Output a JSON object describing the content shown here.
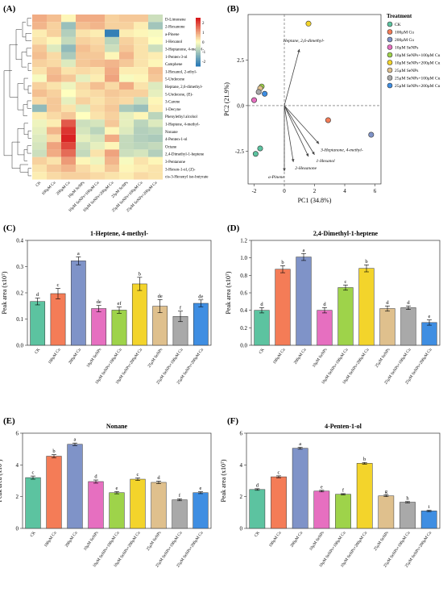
{
  "figure": {
    "panels": {
      "A": {
        "label": "(A)",
        "rows": [
          "D-Limonene",
          "2-Hexanone",
          "a-Pinene",
          "1-Hexanol",
          "3-Heptanone, 4-methyl-",
          "1-Penten-3-ol",
          "Camphene",
          "1-Hexanol, 2-ethyl-",
          "5-Undecene",
          "Heptane, 2,6-dimethyl-",
          "5-Undecene, (E)-",
          "3-Carene",
          "1-Decyne",
          "Phenylethyl alcohol",
          "1-Heptene, 4-methyl-",
          "Nonane",
          "4-Penten-1-ol",
          "Octane",
          "2,4-Dimethyl-1-heptene",
          "3-Pentanone",
          "3-Hexen-1-ol, (Z)-",
          "cis-3-Hexenyl iso-butyrate"
        ],
        "columns": [
          "CK",
          "100μM Cu",
          "200μM Cu",
          "10μM SeNPs",
          "10μM SeNPs+100μM Cu",
          "10μM SeNPs+200μM Cu",
          "25μM SeNPs",
          "25μM SeNPs+100μM Cu",
          "25μM SeNPs+200μM Cu"
        ],
        "colorbar_ticks": [
          "2",
          "1",
          "0",
          "-1",
          "-2"
        ],
        "colors": {
          "high": "#d7191c",
          "mid": "#ffffbf",
          "low": "#2c7bb6"
        }
      },
      "B": {
        "label": "(B)",
        "legend_title": "Treatment",
        "legend": [
          "CK",
          "100μM Cu",
          "200μM Cu",
          "10μM SeNPs",
          "10μM SeNPs+100μM Cu",
          "10μM SeNPs+200μM Cu",
          "25μM SeNPs",
          "25μM SeNPs+100μM Cu",
          "25μM SeNPs+200μM Cu"
        ]
      },
      "C": {
        "label": "(C)"
      },
      "D": {
        "label": "(D)"
      },
      "E": {
        "label": "(E)"
      },
      "F": {
        "label": "(F)"
      }
    }
  },
  "chart_data": [
    {
      "type": "heatmap",
      "panel": "A",
      "rows": [
        "D-Limonene",
        "2-Hexanone",
        "a-Pinene",
        "1-Hexanol",
        "3-Heptanone, 4-methyl-",
        "1-Penten-3-ol",
        "Camphene",
        "1-Hexanol, 2-ethyl-",
        "5-Undecene",
        "Heptane, 2,6-dimethyl-",
        "5-Undecene, (E)-",
        "3-Carene",
        "1-Decyne",
        "Phenylethyl alcohol",
        "1-Heptene, 4-methyl-",
        "Nonane",
        "4-Penten-1-ol",
        "Octane",
        "2,4-Dimethyl-1-heptene",
        "3-Pentanone",
        "3-Hexen-1-ol, (Z)-",
        "cis-3-Hexenyl iso-butyrate"
      ],
      "columns": [
        "CK",
        "100μM Cu",
        "200μM Cu",
        "10μM SeNPs",
        "10μM SeNPs+100μM Cu",
        "10μM SeNPs+200μM Cu",
        "25μM SeNPs",
        "25μM SeNPs+100μM Cu",
        "25μM SeNPs+200μM Cu"
      ],
      "values": [
        [
          0.9,
          0.7,
          0.1,
          0.9,
          0.9,
          0.5,
          0.6,
          0.6,
          -0.6
        ],
        [
          0.8,
          0.5,
          -1.2,
          0.7,
          0.8,
          0.5,
          0.5,
          0.2,
          -1.1
        ],
        [
          0.2,
          0.5,
          -0.9,
          0.3,
          0.2,
          -2.4,
          0.2,
          0.1,
          -0.1
        ],
        [
          0.3,
          0.1,
          -0.7,
          0.5,
          0.4,
          -0.8,
          0.5,
          0.3,
          0.0
        ],
        [
          0.6,
          -0.4,
          -1.3,
          0.7,
          0.5,
          -0.6,
          0.6,
          0.3,
          -0.6
        ],
        [
          0.7,
          0.4,
          -1.0,
          0.6,
          0.6,
          0.1,
          0.8,
          0.3,
          0.2
        ],
        [
          0.5,
          0.4,
          -0.4,
          0.6,
          0.7,
          0.8,
          0.6,
          0.3,
          0.1
        ],
        [
          0.3,
          0.7,
          0.3,
          0.4,
          0.3,
          0.9,
          0.2,
          0.2,
          0.7
        ],
        [
          -0.1,
          0.8,
          0.6,
          -0.3,
          0.2,
          1.0,
          -0.1,
          0.1,
          0.6
        ],
        [
          0.5,
          0.3,
          -0.2,
          0.4,
          0.7,
          0.4,
          0.9,
          0.3,
          -0.4
        ],
        [
          0.7,
          0.5,
          0.0,
          0.3,
          0.4,
          0.6,
          0.5,
          0.5,
          -0.3
        ],
        [
          0.4,
          0.6,
          -0.3,
          0.5,
          0.3,
          0.5,
          0.4,
          -0.6,
          0.1
        ],
        [
          -1.3,
          0.6,
          0.3,
          -0.4,
          0.4,
          0.6,
          -1.0,
          -1.2,
          0.2
        ],
        [
          0.2,
          0.4,
          0.6,
          0.0,
          0.3,
          0.5,
          -0.3,
          0.1,
          -0.8
        ],
        [
          -0.2,
          0.2,
          1.8,
          -0.6,
          -0.5,
          0.6,
          -0.3,
          -0.8,
          -0.4
        ],
        [
          -0.3,
          0.8,
          2.2,
          -0.5,
          -0.8,
          0.1,
          -0.4,
          -0.9,
          -0.8
        ],
        [
          -0.4,
          0.4,
          2.4,
          -0.3,
          -0.5,
          0.9,
          -0.7,
          -0.9,
          -1.0
        ],
        [
          -0.5,
          1.0,
          2.0,
          -0.6,
          -0.3,
          0.1,
          -0.7,
          -0.8,
          -0.7
        ],
        [
          -0.6,
          0.9,
          1.6,
          -0.7,
          0.3,
          1.0,
          -0.6,
          -0.5,
          -0.9
        ],
        [
          0.5,
          0.3,
          1.1,
          0.1,
          -0.2,
          0.8,
          -0.1,
          0.3,
          0.1
        ],
        [
          0.3,
          0.6,
          0.8,
          0.4,
          0.2,
          0.6,
          0.1,
          0.2,
          0.3
        ],
        [
          0.2,
          0.4,
          0.5,
          0.5,
          0.4,
          0.3,
          0.2,
          0.4,
          0.3
        ]
      ],
      "colorbar_range": [
        -2.5,
        2.5
      ]
    },
    {
      "type": "scatter",
      "panel": "B",
      "xlabel": "PC1 (34.8%)",
      "ylabel": "PC2 (21.9%)",
      "xlim": [
        -2.4,
        6.4
      ],
      "ylim": [
        -4.3,
        5.0
      ],
      "xticks": [
        "-2",
        "0",
        "2",
        "4",
        "6"
      ],
      "yticks": [
        "2.5",
        "0.0",
        "-2.5"
      ],
      "points": [
        {
          "group": "CK",
          "x": -1.6,
          "y": -2.35,
          "color": "#5cc3a0"
        },
        {
          "group": "CK",
          "x": -1.9,
          "y": -2.65,
          "color": "#5cc3a0"
        },
        {
          "group": "100μM Cu",
          "x": 2.9,
          "y": -0.8,
          "color": "#f47c57"
        },
        {
          "group": "200μM Cu",
          "x": 5.75,
          "y": -1.6,
          "color": "#7f93c8"
        },
        {
          "group": "10μM SeNPs",
          "x": -2.0,
          "y": 0.3,
          "color": "#e66fc0"
        },
        {
          "group": "10μM SeNPs+100μM Cu",
          "x": -1.5,
          "y": 1.05,
          "color": "#9ed34a"
        },
        {
          "group": "10μM SeNPs+200μM Cu",
          "x": 1.6,
          "y": 4.5,
          "color": "#f3d42b"
        },
        {
          "group": "25μM SeNPs",
          "x": -1.6,
          "y": 0.95,
          "color": "#dfc08d"
        },
        {
          "group": "25μM SeNPs+100μM Cu",
          "x": -1.7,
          "y": 0.75,
          "color": "#a9a9a9"
        },
        {
          "group": "25μM SeNPs+200μM Cu",
          "x": -1.3,
          "y": 0.65,
          "color": "#3f8ee2"
        }
      ],
      "loadings": [
        {
          "name": "Heptane, 2,6-dimethyl-",
          "x": 1.0,
          "y": 3.1
        },
        {
          "name": "3-Heptanone, 4-methyl-",
          "x": 2.3,
          "y": -2.1
        },
        {
          "name": "1-Hexanol",
          "x": 2.0,
          "y": -2.7
        },
        {
          "name": "2-Hexanone",
          "x": 0.6,
          "y": -3.1
        },
        {
          "name": "a-Pinene",
          "x": 0.0,
          "y": -3.6
        },
        {
          "name": "",
          "x": 1.6,
          "y": -2.8
        }
      ]
    },
    {
      "type": "bar",
      "panel": "C",
      "title": "1-Heptene, 4-methyl-",
      "ylabel": "Peak area (x10⁷)",
      "categories": [
        "CK",
        "100μM Cu",
        "200μM Cu",
        "10μM SeNPs",
        "10μM SeNPs+100μM Cu",
        "10μM SeNPs+200μM Cu",
        "25μM SeNPs",
        "25μM SeNPs+100μM Cu",
        "25μM SeNPs+200μM Cu"
      ],
      "values": [
        0.167,
        0.197,
        0.322,
        0.14,
        0.134,
        0.234,
        0.149,
        0.11,
        0.16
      ],
      "errors": [
        0.013,
        0.02,
        0.015,
        0.012,
        0.012,
        0.025,
        0.025,
        0.02,
        0.013
      ],
      "letters": [
        "d",
        "c",
        "a",
        "de",
        "ef",
        "b",
        "de",
        "f",
        "de"
      ],
      "ylim": [
        0,
        0.4
      ],
      "yticks": [
        "0.0",
        "0.1",
        "0.2",
        "0.3",
        "0.4"
      ]
    },
    {
      "type": "bar",
      "panel": "D",
      "title": "2,4-Dimethyl-1-heptene",
      "ylabel": "Peak area (x10⁷)",
      "categories": [
        "CK",
        "100μM Cu",
        "200μM Cu",
        "10μM SeNPs",
        "10μM SeNPs+100μM Cu",
        "10μM SeNPs+200μM Cu",
        "25μM SeNPs",
        "25μM SeNPs+100μM Cu",
        "25μM SeNPs+200μM Cu"
      ],
      "values": [
        0.4,
        0.87,
        1.01,
        0.4,
        0.66,
        0.88,
        0.42,
        0.43,
        0.26
      ],
      "errors": [
        0.03,
        0.04,
        0.04,
        0.03,
        0.03,
        0.04,
        0.03,
        0.02,
        0.03
      ],
      "letters": [
        "d",
        "b",
        "a",
        "d",
        "c",
        "b",
        "d",
        "d",
        "e"
      ],
      "ylim": [
        0,
        1.2
      ],
      "yticks": [
        "0.0",
        "0.2",
        "0.4",
        "0.6",
        "0.8",
        "1.0",
        "1.2"
      ]
    },
    {
      "type": "bar",
      "panel": "E",
      "title": "Nonane",
      "ylabel": "Peak area (x10⁷)",
      "categories": [
        "CK",
        "100μM Cu",
        "200μM Cu",
        "10μM SeNPs",
        "10μM SeNPs+100μM Cu",
        "10μM SeNPs+200μM Cu",
        "25μM SeNPs",
        "25μM SeNPs+100μM Cu",
        "25μM SeNPs+200μM Cu"
      ],
      "values": [
        3.2,
        4.55,
        5.3,
        2.95,
        2.25,
        3.1,
        2.9,
        1.8,
        2.25
      ],
      "errors": [
        0.1,
        0.1,
        0.08,
        0.1,
        0.07,
        0.08,
        0.08,
        0.06,
        0.06
      ],
      "letters": [
        "c",
        "b",
        "a",
        "d",
        "e",
        "c",
        "d",
        "f",
        "e"
      ],
      "ylim": [
        0,
        6
      ],
      "yticks": [
        "0",
        "2",
        "4",
        "6"
      ]
    },
    {
      "type": "bar",
      "panel": "F",
      "title": "4-Penten-1-ol",
      "ylabel": "Peak area (x10⁷)",
      "categories": [
        "CK",
        "100μM Cu",
        "200μM Cu",
        "10μM SeNPs",
        "10μM SeNPs+100μM Cu",
        "10μM SeNPs+200μM Cu",
        "25μM SeNPs",
        "25μM SeNPs+100μM Cu",
        "25μM SeNPs+200μM Cu"
      ],
      "values": [
        2.45,
        3.25,
        5.05,
        2.35,
        2.15,
        4.1,
        2.05,
        1.65,
        1.1
      ],
      "errors": [
        0.05,
        0.06,
        0.06,
        0.05,
        0.04,
        0.05,
        0.05,
        0.04,
        0.04
      ],
      "letters": [
        "d",
        "c",
        "a",
        "e",
        "f",
        "b",
        "g",
        "h",
        "i"
      ],
      "ylim": [
        0,
        6
      ],
      "yticks": [
        "0",
        "2",
        "4",
        "6"
      ]
    }
  ],
  "colors": {
    "treatments": [
      "#5cc3a0",
      "#f47c57",
      "#7f93c8",
      "#e66fc0",
      "#9ed34a",
      "#f3d42b",
      "#dfc08d",
      "#a9a9a9",
      "#3f8ee2"
    ]
  }
}
